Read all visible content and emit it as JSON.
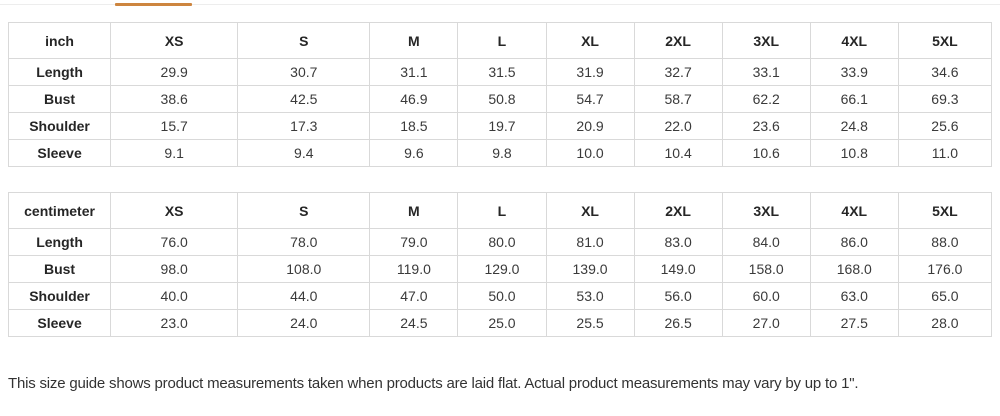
{
  "tab_bar": {
    "active_indicator_color": "#cd853f"
  },
  "tables": [
    {
      "unit": "inch",
      "columns": [
        "XS",
        "S",
        "M",
        "L",
        "XL",
        "2XL",
        "3XL",
        "4XL",
        "5XL"
      ],
      "rows": [
        {
          "label": "Length",
          "values": [
            "29.9",
            "30.7",
            "31.1",
            "31.5",
            "31.9",
            "32.7",
            "33.1",
            "33.9",
            "34.6"
          ]
        },
        {
          "label": "Bust",
          "values": [
            "38.6",
            "42.5",
            "46.9",
            "50.8",
            "54.7",
            "58.7",
            "62.2",
            "66.1",
            "69.3"
          ]
        },
        {
          "label": "Shoulder",
          "values": [
            "15.7",
            "17.3",
            "18.5",
            "19.7",
            "20.9",
            "22.0",
            "23.6",
            "24.8",
            "25.6"
          ]
        },
        {
          "label": "Sleeve",
          "values": [
            "9.1",
            "9.4",
            "9.6",
            "9.8",
            "10.0",
            "10.4",
            "10.6",
            "10.8",
            "11.0"
          ]
        }
      ]
    },
    {
      "unit": "centimeter",
      "columns": [
        "XS",
        "S",
        "M",
        "L",
        "XL",
        "2XL",
        "3XL",
        "4XL",
        "5XL"
      ],
      "rows": [
        {
          "label": "Length",
          "values": [
            "76.0",
            "78.0",
            "79.0",
            "80.0",
            "81.0",
            "83.0",
            "84.0",
            "86.0",
            "88.0"
          ]
        },
        {
          "label": "Bust",
          "values": [
            "98.0",
            "108.0",
            "119.0",
            "129.0",
            "139.0",
            "149.0",
            "158.0",
            "168.0",
            "176.0"
          ]
        },
        {
          "label": "Shoulder",
          "values": [
            "40.0",
            "44.0",
            "47.0",
            "50.0",
            "53.0",
            "56.0",
            "60.0",
            "63.0",
            "65.0"
          ]
        },
        {
          "label": "Sleeve",
          "values": [
            "23.0",
            "24.0",
            "24.5",
            "25.0",
            "25.5",
            "26.5",
            "27.0",
            "27.5",
            "28.0"
          ]
        }
      ]
    }
  ],
  "footnote": "This size guide shows product measurements taken when products are laid flat. Actual product measurements may vary by up to 1\"."
}
